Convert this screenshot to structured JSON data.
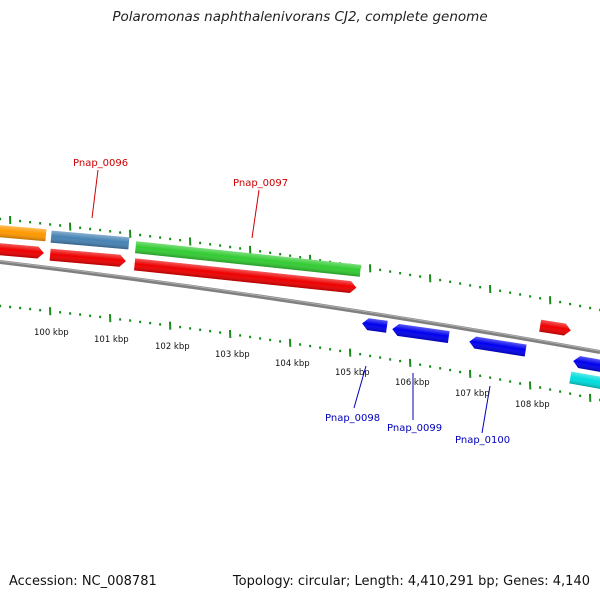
{
  "title": "Polaromonas naphthalenivorans CJ2, complete genome",
  "footer": {
    "accession": "Accession: NC_008781",
    "stats": "Topology: circular; Length: 4,410,291 bp; Genes: 4,140"
  },
  "colors": {
    "top_label": "#cc0000",
    "bottom_label": "#0000bb",
    "tick": "#1a8a1a",
    "backbone": "#808080",
    "orange": "#ff9900",
    "steelblue": "#4682b4",
    "green": "#33cc33",
    "red": "#ee0000",
    "blue": "#0000ee",
    "cyan": "#00dddd"
  },
  "scale_labels": [
    "100 kbp",
    "101 kbp",
    "102 kbp",
    "103 kbp",
    "104 kbp",
    "105 kbp",
    "106 kbp",
    "107 kbp",
    "108 kbp"
  ],
  "gene_labels": [
    {
      "text": "Pnap_0096",
      "strand": "top"
    },
    {
      "text": "Pnap_0097",
      "strand": "top"
    },
    {
      "text": "Pnap_0098",
      "strand": "bottom"
    },
    {
      "text": "Pnap_0099",
      "strand": "bottom"
    },
    {
      "text": "Pnap_0100",
      "strand": "bottom"
    }
  ],
  "features": [
    {
      "name": "orange-gene",
      "color": "orange"
    },
    {
      "name": "steelblue-gene",
      "color": "steelblue"
    },
    {
      "name": "green-gene",
      "color": "green"
    },
    {
      "name": "red-cds-1",
      "color": "red"
    },
    {
      "name": "red-cds-2",
      "color": "red"
    },
    {
      "name": "red-cds-3",
      "color": "red"
    },
    {
      "name": "red-cds-4",
      "color": "red"
    },
    {
      "name": "blue-cds-1",
      "color": "blue"
    },
    {
      "name": "blue-cds-2",
      "color": "blue"
    },
    {
      "name": "blue-cds-3",
      "color": "blue"
    },
    {
      "name": "blue-cds-4",
      "color": "blue"
    },
    {
      "name": "cyan-gene",
      "color": "cyan"
    }
  ]
}
